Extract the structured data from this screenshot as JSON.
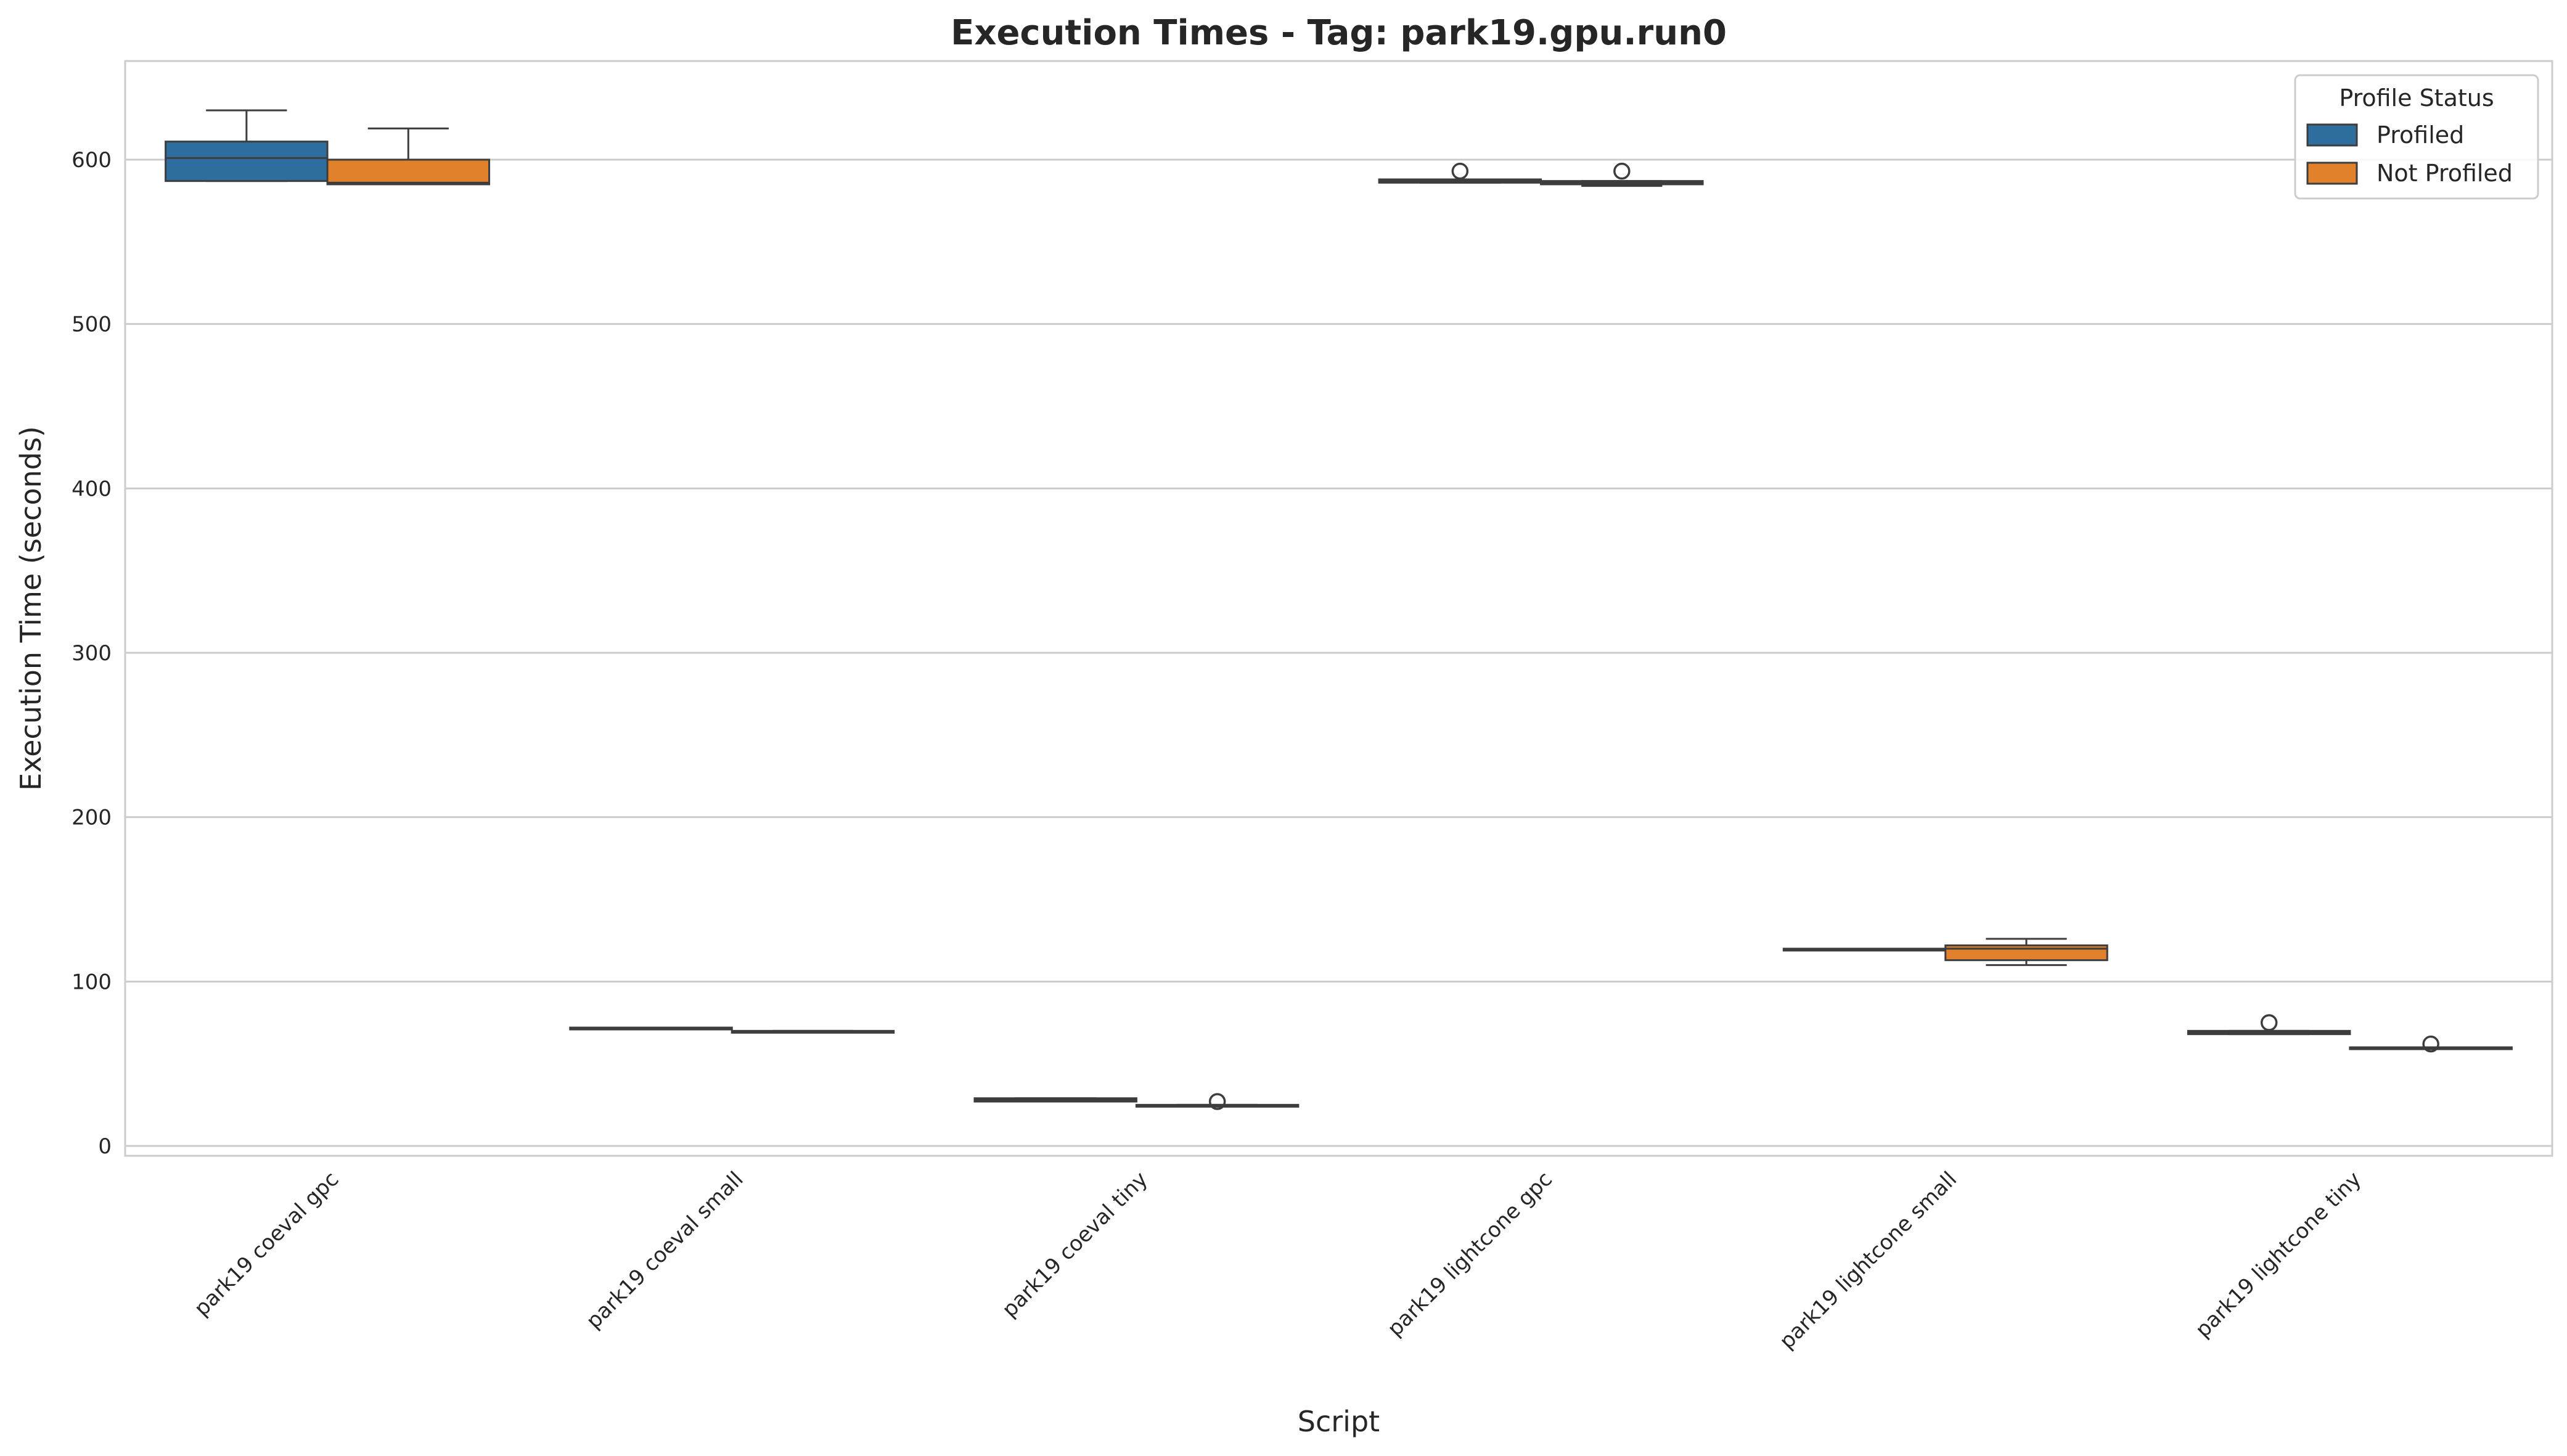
{
  "chart_data": {
    "type": "box",
    "title": "Execution Times - Tag: park19.gpu.run0",
    "xlabel": "Script",
    "ylabel": "Execution Time (seconds)",
    "ylim": [
      -6,
      660
    ],
    "yticks": [
      0,
      100,
      200,
      300,
      400,
      500,
      600
    ],
    "grid": true,
    "categories": [
      "park19 coeval gpc",
      "park19 coeval small",
      "park19 coeval tiny",
      "park19 lightcone gpc",
      "park19 lightcone small",
      "park19 lightcone tiny"
    ],
    "legend": {
      "title": "Profile Status",
      "placement": "top-right"
    },
    "series": [
      {
        "name": "Profiled",
        "color": "#2e6e9e",
        "boxes": [
          {
            "whisker_low": 587,
            "q1": 587,
            "median": 601,
            "q3": 611,
            "whisker_high": 630,
            "outliers": []
          },
          {
            "whisker_low": 71,
            "q1": 71,
            "median": 71.5,
            "q3": 72,
            "whisker_high": 72,
            "outliers": []
          },
          {
            "whisker_low": 27,
            "q1": 27,
            "median": 28,
            "q3": 29,
            "whisker_high": 29,
            "outliers": []
          },
          {
            "whisker_low": 586,
            "q1": 586,
            "median": 587,
            "q3": 588,
            "whisker_high": 588,
            "outliers": [
              593
            ]
          },
          {
            "whisker_low": 119,
            "q1": 119,
            "median": 119.5,
            "q3": 120,
            "whisker_high": 120,
            "outliers": []
          },
          {
            "whisker_low": 68,
            "q1": 68,
            "median": 69,
            "q3": 70,
            "whisker_high": 70,
            "outliers": [
              75
            ]
          }
        ]
      },
      {
        "name": "Not Profiled",
        "color": "#e1812c",
        "boxes": [
          {
            "whisker_low": 585,
            "q1": 585,
            "median": 586,
            "q3": 600,
            "whisker_high": 619,
            "outliers": []
          },
          {
            "whisker_low": 69,
            "q1": 69,
            "median": 69.5,
            "q3": 70,
            "whisker_high": 70,
            "outliers": []
          },
          {
            "whisker_low": 24,
            "q1": 24,
            "median": 24.5,
            "q3": 25,
            "whisker_high": 25,
            "outliers": [
              27
            ]
          },
          {
            "whisker_low": 584,
            "q1": 585,
            "median": 586,
            "q3": 587,
            "whisker_high": 587,
            "outliers": [
              593
            ]
          },
          {
            "whisker_low": 110,
            "q1": 113,
            "median": 120,
            "q3": 122,
            "whisker_high": 126,
            "outliers": []
          },
          {
            "whisker_low": 59,
            "q1": 59,
            "median": 59.5,
            "q3": 60,
            "whisker_high": 60,
            "outliers": [
              62
            ]
          }
        ]
      }
    ]
  }
}
